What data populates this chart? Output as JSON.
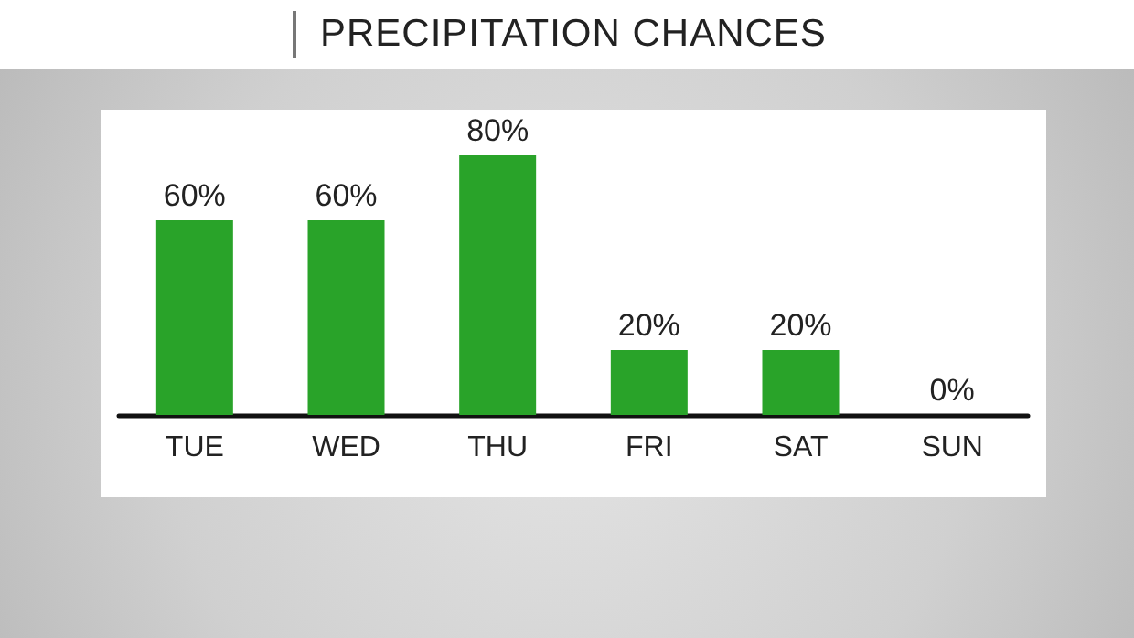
{
  "chart_data": {
    "type": "bar",
    "title": "PRECIPITATION CHANCES",
    "categories": [
      "TUE",
      "WED",
      "THU",
      "FRI",
      "SAT",
      "SUN"
    ],
    "values": [
      60,
      60,
      80,
      20,
      20,
      0
    ],
    "value_labels": [
      "60%",
      "60%",
      "80%",
      "20%",
      "20%",
      "0%"
    ],
    "color": "#29a329"
  }
}
